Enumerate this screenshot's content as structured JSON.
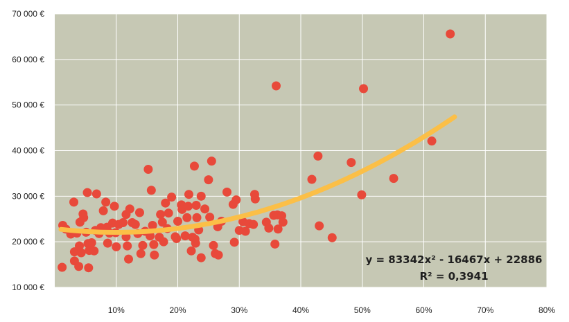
{
  "chart_data": {
    "type": "scatter",
    "xlim": [
      0,
      0.8
    ],
    "ylim": [
      10000,
      70000
    ],
    "x_ticks": [
      {
        "value": 0.1,
        "label": "10%"
      },
      {
        "value": 0.2,
        "label": "20%"
      },
      {
        "value": 0.3,
        "label": "30%"
      },
      {
        "value": 0.4,
        "label": "40%"
      },
      {
        "value": 0.5,
        "label": "50%"
      },
      {
        "value": 0.6,
        "label": "60%"
      },
      {
        "value": 0.7,
        "label": "70%"
      },
      {
        "value": 0.8,
        "label": "80%"
      }
    ],
    "y_ticks": [
      {
        "value": 10000,
        "label": "10 000 €"
      },
      {
        "value": 20000,
        "label": "20 000 €"
      },
      {
        "value": 30000,
        "label": "30 000 €"
      },
      {
        "value": 40000,
        "label": "40 000 €"
      },
      {
        "value": 50000,
        "label": "50 000 €"
      },
      {
        "value": 60000,
        "label": "60 000 €"
      },
      {
        "value": 70000,
        "label": "70 000 €"
      }
    ],
    "grid": true,
    "points": [
      [
        0.012,
        14400
      ],
      [
        0.013,
        23600
      ],
      [
        0.018,
        22800
      ],
      [
        0.026,
        21700
      ],
      [
        0.031,
        28700
      ],
      [
        0.032,
        17800
      ],
      [
        0.032,
        15800
      ],
      [
        0.036,
        21900
      ],
      [
        0.039,
        14600
      ],
      [
        0.04,
        19100
      ],
      [
        0.041,
        24300
      ],
      [
        0.043,
        17600
      ],
      [
        0.046,
        26100
      ],
      [
        0.047,
        25300
      ],
      [
        0.051,
        22100
      ],
      [
        0.053,
        30800
      ],
      [
        0.054,
        19600
      ],
      [
        0.055,
        14300
      ],
      [
        0.056,
        18100
      ],
      [
        0.06,
        19800
      ],
      [
        0.064,
        18000
      ],
      [
        0.066,
        22500
      ],
      [
        0.068,
        30500
      ],
      [
        0.072,
        21800
      ],
      [
        0.075,
        23100
      ],
      [
        0.079,
        26800
      ],
      [
        0.083,
        28700
      ],
      [
        0.085,
        23200
      ],
      [
        0.086,
        19700
      ],
      [
        0.089,
        21900
      ],
      [
        0.094,
        24100
      ],
      [
        0.097,
        27800
      ],
      [
        0.099,
        22000
      ],
      [
        0.1,
        18900
      ],
      [
        0.104,
        23800
      ],
      [
        0.111,
        24200
      ],
      [
        0.116,
        26000
      ],
      [
        0.116,
        21100
      ],
      [
        0.118,
        19100
      ],
      [
        0.12,
        16200
      ],
      [
        0.122,
        27200
      ],
      [
        0.126,
        24200
      ],
      [
        0.131,
        23800
      ],
      [
        0.135,
        21800
      ],
      [
        0.138,
        26400
      ],
      [
        0.14,
        17400
      ],
      [
        0.143,
        19200
      ],
      [
        0.147,
        22300
      ],
      [
        0.152,
        35900
      ],
      [
        0.155,
        21300
      ],
      [
        0.157,
        31300
      ],
      [
        0.159,
        23600
      ],
      [
        0.161,
        19400
      ],
      [
        0.162,
        17100
      ],
      [
        0.17,
        21000
      ],
      [
        0.172,
        26000
      ],
      [
        0.175,
        24300
      ],
      [
        0.177,
        20000
      ],
      [
        0.18,
        28500
      ],
      [
        0.183,
        22900
      ],
      [
        0.185,
        26300
      ],
      [
        0.19,
        29800
      ],
      [
        0.196,
        21100
      ],
      [
        0.198,
        20700
      ],
      [
        0.2,
        24500
      ],
      [
        0.206,
        28100
      ],
      [
        0.207,
        27100
      ],
      [
        0.212,
        21300
      ],
      [
        0.215,
        25300
      ],
      [
        0.217,
        27800
      ],
      [
        0.218,
        30400
      ],
      [
        0.222,
        18000
      ],
      [
        0.224,
        21000
      ],
      [
        0.227,
        36600
      ],
      [
        0.228,
        20600
      ],
      [
        0.229,
        19700
      ],
      [
        0.23,
        28000
      ],
      [
        0.231,
        25300
      ],
      [
        0.234,
        22600
      ],
      [
        0.238,
        30000
      ],
      [
        0.238,
        16500
      ],
      [
        0.244,
        27200
      ],
      [
        0.25,
        33600
      ],
      [
        0.252,
        25400
      ],
      [
        0.255,
        37700
      ],
      [
        0.258,
        19200
      ],
      [
        0.261,
        17400
      ],
      [
        0.265,
        23300
      ],
      [
        0.266,
        17100
      ],
      [
        0.271,
        24500
      ],
      [
        0.28,
        30900
      ],
      [
        0.29,
        28200
      ],
      [
        0.292,
        19900
      ],
      [
        0.295,
        29200
      ],
      [
        0.3,
        22500
      ],
      [
        0.306,
        24400
      ],
      [
        0.31,
        22300
      ],
      [
        0.316,
        24000
      ],
      [
        0.323,
        23800
      ],
      [
        0.325,
        30400
      ],
      [
        0.326,
        29400
      ],
      [
        0.344,
        24300
      ],
      [
        0.348,
        23000
      ],
      [
        0.356,
        25800
      ],
      [
        0.358,
        19500
      ],
      [
        0.36,
        54200
      ],
      [
        0.362,
        25900
      ],
      [
        0.363,
        22800
      ],
      [
        0.369,
        25700
      ],
      [
        0.371,
        24300
      ],
      [
        0.418,
        33700
      ],
      [
        0.428,
        38800
      ],
      [
        0.43,
        23500
      ],
      [
        0.451,
        20900
      ],
      [
        0.482,
        37400
      ],
      [
        0.499,
        30300
      ],
      [
        0.502,
        53600
      ],
      [
        0.551,
        33900
      ],
      [
        0.613,
        42100
      ],
      [
        0.643,
        65600
      ]
    ],
    "trendline": {
      "type": "polynomial",
      "coefficients": [
        83342,
        -16467,
        22886
      ],
      "x_range": [
        0.01,
        0.65
      ]
    },
    "annotations": [
      "y = 83342x² - 16467x + 22886",
      "R² = 0,3941"
    ],
    "colors": {
      "plot_bg": "#c6c8b4",
      "grid": "#ffffff",
      "point": "#e8493a",
      "trend": "#fbbf47"
    }
  }
}
